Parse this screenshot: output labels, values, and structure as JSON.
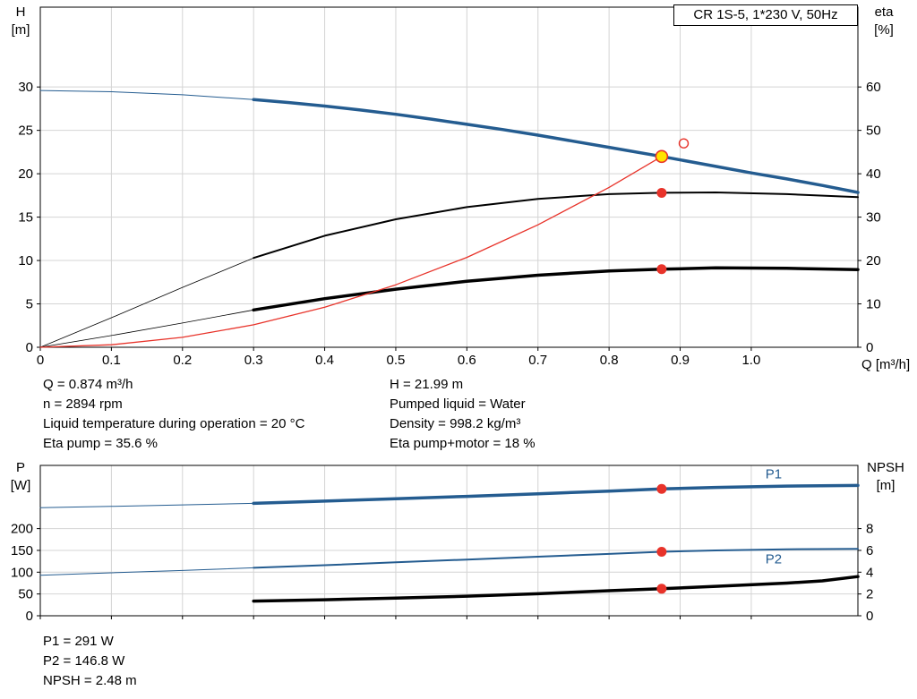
{
  "title": "CR 1S-5, 1*230 V, 50Hz",
  "style": {
    "curve_blue": "#245c90",
    "curve_black": "#000000",
    "curve_red": "#e8332a",
    "marker_red": "#e8332a",
    "marker_yellow": "#ffe400",
    "grid_color": "#d4d4d4",
    "axis_color": "#000000",
    "label_blue": "#245c90"
  },
  "info_top": {
    "left": [
      "Q = 0.874 m³/h",
      "n = 2894 rpm",
      "Liquid temperature during operation = 20 °C",
      "Eta pump = 35.6 %"
    ],
    "right": [
      "H = 21.99 m",
      "Pumped liquid = Water",
      "Density = 998.2 kg/m³",
      "Eta pump+motor = 18 %"
    ]
  },
  "info_bottom": [
    "P1 = 291 W",
    "P2 = 146.8 W",
    "NPSH = 2.48 m"
  ],
  "chart_data": [
    {
      "type": "line",
      "name": "qh-eta-chart",
      "title": "CR 1S-5, 1*230 V, 50Hz",
      "grid": true,
      "x_axis": {
        "label": "Q [m³/h]",
        "min": 0,
        "max": 1.15,
        "ticks": [
          0,
          0.1,
          0.2,
          0.3,
          0.4,
          0.5,
          0.6,
          0.7,
          0.8,
          0.9,
          1.0
        ],
        "tick_labels": [
          "0",
          "0.1",
          "0.2",
          "0.3",
          "0.4",
          "0.5",
          "0.6",
          "0.7",
          "0.8",
          "0.9",
          "1.0"
        ],
        "show_labels": true
      },
      "y_left": {
        "label": "H",
        "unit": "[m]",
        "min": 0,
        "max": 39.2,
        "ticks": [
          0,
          5,
          10,
          15,
          20,
          25,
          30
        ]
      },
      "y_right": {
        "label": "eta",
        "unit": "[%]",
        "min": 0,
        "max": 78.4,
        "ticks": [
          0,
          10,
          20,
          30,
          40,
          50,
          60
        ]
      },
      "series": [
        {
          "name": "qh-curve-low-flow",
          "axis": "left",
          "color": "#245c90",
          "width": 1,
          "points": [
            [
              0,
              29.6
            ],
            [
              0.1,
              29.45
            ],
            [
              0.2,
              29.1
            ],
            [
              0.3,
              28.55
            ]
          ]
        },
        {
          "name": "qh-curve",
          "axis": "left",
          "color": "#245c90",
          "width": 3.5,
          "points": [
            [
              0.3,
              28.55
            ],
            [
              0.35,
              28.2
            ],
            [
              0.4,
              27.8
            ],
            [
              0.45,
              27.35
            ],
            [
              0.5,
              26.85
            ],
            [
              0.55,
              26.3
            ],
            [
              0.6,
              25.7
            ],
            [
              0.65,
              25.1
            ],
            [
              0.7,
              24.45
            ],
            [
              0.75,
              23.75
            ],
            [
              0.8,
              23.05
            ],
            [
              0.874,
              21.99
            ],
            [
              0.95,
              20.85
            ],
            [
              1.0,
              20.1
            ],
            [
              1.05,
              19.4
            ],
            [
              1.1,
              18.65
            ],
            [
              1.15,
              17.85
            ]
          ]
        },
        {
          "name": "eta-pump-curve-low-flow",
          "axis": "right",
          "color": "#000000",
          "width": 0.8,
          "points": [
            [
              0,
              0
            ],
            [
              0.1,
              6.8
            ],
            [
              0.2,
              13.8
            ],
            [
              0.3,
              20.6
            ]
          ]
        },
        {
          "name": "eta-pump-curve",
          "axis": "right",
          "color": "#000000",
          "width": 2,
          "points": [
            [
              0.3,
              20.6
            ],
            [
              0.4,
              25.7
            ],
            [
              0.5,
              29.5
            ],
            [
              0.6,
              32.3
            ],
            [
              0.7,
              34.2
            ],
            [
              0.8,
              35.3
            ],
            [
              0.874,
              35.6
            ],
            [
              0.95,
              35.7
            ],
            [
              1.05,
              35.3
            ],
            [
              1.15,
              34.6
            ]
          ]
        },
        {
          "name": "eta-pump-motor-curve-low-flow",
          "axis": "right",
          "color": "#000000",
          "width": 0.8,
          "points": [
            [
              0,
              0
            ],
            [
              0.1,
              2.7
            ],
            [
              0.2,
              5.6
            ],
            [
              0.3,
              8.6
            ]
          ]
        },
        {
          "name": "eta-pump-motor-curve",
          "axis": "right",
          "color": "#000000",
          "width": 3.5,
          "points": [
            [
              0.3,
              8.6
            ],
            [
              0.4,
              11.2
            ],
            [
              0.5,
              13.4
            ],
            [
              0.6,
              15.2
            ],
            [
              0.7,
              16.6
            ],
            [
              0.8,
              17.6
            ],
            [
              0.874,
              18
            ],
            [
              0.95,
              18.3
            ],
            [
              1.05,
              18.2
            ],
            [
              1.15,
              17.9
            ]
          ]
        },
        {
          "name": "system-curve",
          "axis": "left",
          "color": "#e8332a",
          "width": 1.3,
          "points": [
            [
              0,
              0
            ],
            [
              0.1,
              0.29
            ],
            [
              0.2,
              1.15
            ],
            [
              0.3,
              2.59
            ],
            [
              0.4,
              4.61
            ],
            [
              0.5,
              7.2
            ],
            [
              0.6,
              10.36
            ],
            [
              0.7,
              14.11
            ],
            [
              0.8,
              18.42
            ],
            [
              0.874,
              21.99
            ]
          ]
        }
      ],
      "markers": [
        {
          "name": "duty-point",
          "x": 0.874,
          "y": 21.99,
          "axis": "left",
          "r": 6.5,
          "fill": "#ffe400",
          "stroke": "#e8332a",
          "stroke_width": 1.6
        },
        {
          "name": "duty-point-open",
          "x": 0.905,
          "y": 23.5,
          "axis": "left",
          "r": 5,
          "fill": "none",
          "stroke": "#e8332a",
          "stroke_width": 1.4
        },
        {
          "name": "eta-pump-point",
          "x": 0.874,
          "y": 35.6,
          "axis": "right",
          "r": 5.5,
          "fill": "#e8332a"
        },
        {
          "name": "eta-pump-motor-point",
          "x": 0.874,
          "y": 18,
          "axis": "right",
          "r": 5.5,
          "fill": "#e8332a"
        }
      ],
      "annotations": []
    },
    {
      "type": "line",
      "name": "power-npsh-chart",
      "grid": true,
      "x_axis": {
        "min": 0,
        "max": 1.15,
        "ticks": [
          0,
          0.1,
          0.2,
          0.3,
          0.4,
          0.5,
          0.6,
          0.7,
          0.8,
          0.9,
          1.0
        ],
        "show_labels": false
      },
      "y_left": {
        "label": "P",
        "unit": "[W]",
        "min": 0,
        "max": 345,
        "ticks": [
          0,
          50,
          100,
          150,
          200
        ]
      },
      "y_right": {
        "label": "NPSH",
        "unit": "[m]",
        "min": 0,
        "max": 13.8,
        "ticks": [
          0,
          2,
          4,
          6,
          8
        ]
      },
      "series": [
        {
          "name": "p1-curve-low-flow",
          "axis": "left",
          "color": "#245c90",
          "width": 1,
          "points": [
            [
              0,
              248
            ],
            [
              0.1,
              251
            ],
            [
              0.2,
              254.5
            ],
            [
              0.3,
              258
            ]
          ]
        },
        {
          "name": "p1-curve",
          "axis": "left",
          "color": "#245c90",
          "width": 3.5,
          "points": [
            [
              0.3,
              258
            ],
            [
              0.4,
              263
            ],
            [
              0.5,
              268.5
            ],
            [
              0.6,
              274
            ],
            [
              0.7,
              280
            ],
            [
              0.8,
              286
            ],
            [
              0.874,
              291
            ],
            [
              0.95,
              294.5
            ],
            [
              1.05,
              297.5
            ],
            [
              1.15,
              299
            ]
          ]
        },
        {
          "name": "p2-curve-low-flow",
          "axis": "left",
          "color": "#245c90",
          "width": 1,
          "points": [
            [
              0,
              93
            ],
            [
              0.1,
              98.5
            ],
            [
              0.2,
              104
            ],
            [
              0.3,
              110
            ]
          ]
        },
        {
          "name": "p2-curve",
          "axis": "left",
          "color": "#245c90",
          "width": 2,
          "points": [
            [
              0.3,
              110
            ],
            [
              0.4,
              116
            ],
            [
              0.5,
              122.5
            ],
            [
              0.6,
              129
            ],
            [
              0.7,
              135.5
            ],
            [
              0.8,
              142
            ],
            [
              0.874,
              146.8
            ],
            [
              0.95,
              150
            ],
            [
              1.05,
              152.5
            ],
            [
              1.15,
              153.5
            ]
          ]
        },
        {
          "name": "npsh-curve",
          "axis": "right",
          "color": "#000000",
          "width": 3.5,
          "points": [
            [
              0.3,
              1.35
            ],
            [
              0.4,
              1.47
            ],
            [
              0.5,
              1.62
            ],
            [
              0.6,
              1.8
            ],
            [
              0.7,
              2.02
            ],
            [
              0.8,
              2.3
            ],
            [
              0.874,
              2.48
            ],
            [
              0.95,
              2.7
            ],
            [
              1.05,
              3.0
            ],
            [
              1.1,
              3.2
            ],
            [
              1.15,
              3.6
            ]
          ]
        }
      ],
      "markers": [
        {
          "name": "p1-point",
          "x": 0.874,
          "y": 291,
          "axis": "left",
          "r": 5.5,
          "fill": "#e8332a"
        },
        {
          "name": "p2-point",
          "x": 0.874,
          "y": 146.8,
          "axis": "left",
          "r": 5.5,
          "fill": "#e8332a"
        },
        {
          "name": "npsh-point",
          "x": 0.874,
          "y": 2.48,
          "axis": "right",
          "r": 5.5,
          "fill": "#e8332a"
        }
      ],
      "annotations": [
        {
          "name": "p1-label",
          "text": "P1",
          "x": 1.02,
          "y": 315,
          "axis": "left",
          "color": "#245c90"
        },
        {
          "name": "p2-label",
          "text": "P2",
          "x": 1.02,
          "y": 120,
          "axis": "left",
          "color": "#245c90"
        }
      ]
    }
  ]
}
